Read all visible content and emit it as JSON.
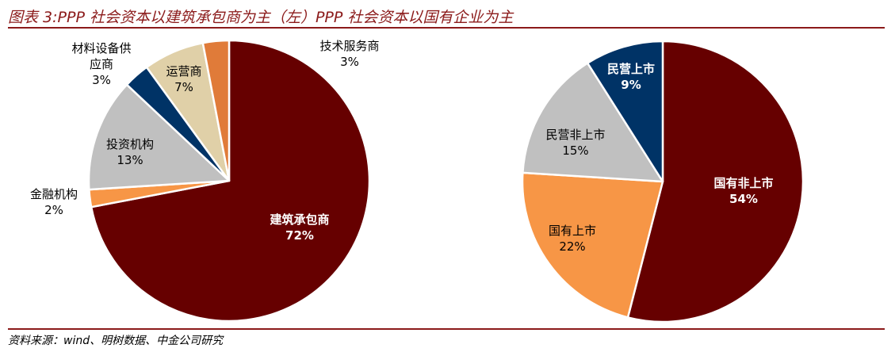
{
  "figure": {
    "title": "图表 3:PPP 社会资本以建筑承包商为主（左）PPP 社会资本以国有企业为主",
    "source": "资料来源：wind、明树数据、中金公司研究"
  },
  "chart_data": [
    {
      "type": "pie",
      "slices": [
        {
          "label": "建筑承包商",
          "value": 72,
          "display": "72%",
          "color": "#660000"
        },
        {
          "label": "金融机构",
          "value": 2,
          "display": "2%",
          "color": "#F79646"
        },
        {
          "label": "投资机构",
          "value": 13,
          "display": "13%",
          "color": "#C0C0C0"
        },
        {
          "label": "材料设备供应商",
          "label_lines": [
            "材料设备供",
            "应商"
          ],
          "value": 3,
          "display": "3%",
          "color": "#003366"
        },
        {
          "label": "运营商",
          "value": 7,
          "display": "7%",
          "color": "#E0D0A8"
        },
        {
          "label": "技术服务商",
          "value": 3,
          "display": "3%",
          "color": "#E07B39"
        }
      ]
    },
    {
      "type": "pie",
      "slices": [
        {
          "label": "国有非上市",
          "value": 54,
          "display": "54%",
          "color": "#660000"
        },
        {
          "label": "国有上市",
          "value": 22,
          "display": "22%",
          "color": "#F79646"
        },
        {
          "label": "民营非上市",
          "value": 15,
          "display": "15%",
          "color": "#C0C0C0"
        },
        {
          "label": "民营上市",
          "value": 9,
          "display": "9%",
          "color": "#003366"
        }
      ]
    }
  ]
}
